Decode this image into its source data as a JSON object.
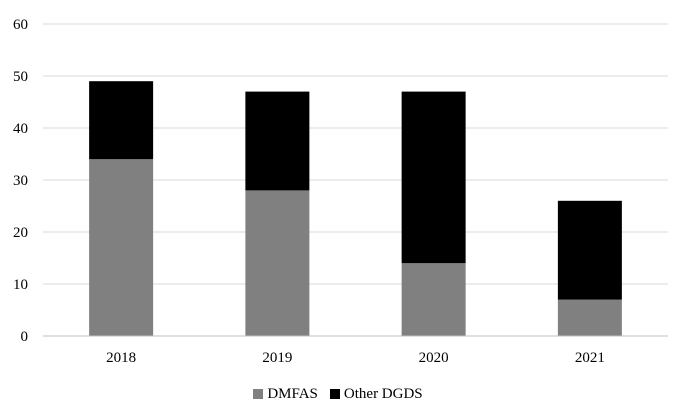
{
  "chart_data": {
    "type": "bar",
    "stacked": true,
    "categories": [
      "2018",
      "2019",
      "2020",
      "2021"
    ],
    "series": [
      {
        "name": "DMFAS",
        "values": [
          34,
          28,
          14,
          7
        ],
        "color": "#808080"
      },
      {
        "name": "Other DGDS",
        "values": [
          15,
          19,
          33,
          19
        ],
        "color": "#000000"
      }
    ],
    "title": "",
    "xlabel": "",
    "ylabel": "",
    "ylim": [
      0,
      60
    ],
    "yticks": [
      0,
      10,
      20,
      30,
      40,
      50,
      60
    ],
    "grid": true,
    "grid_color": "#d9d9d9",
    "legend_position": "bottom"
  }
}
